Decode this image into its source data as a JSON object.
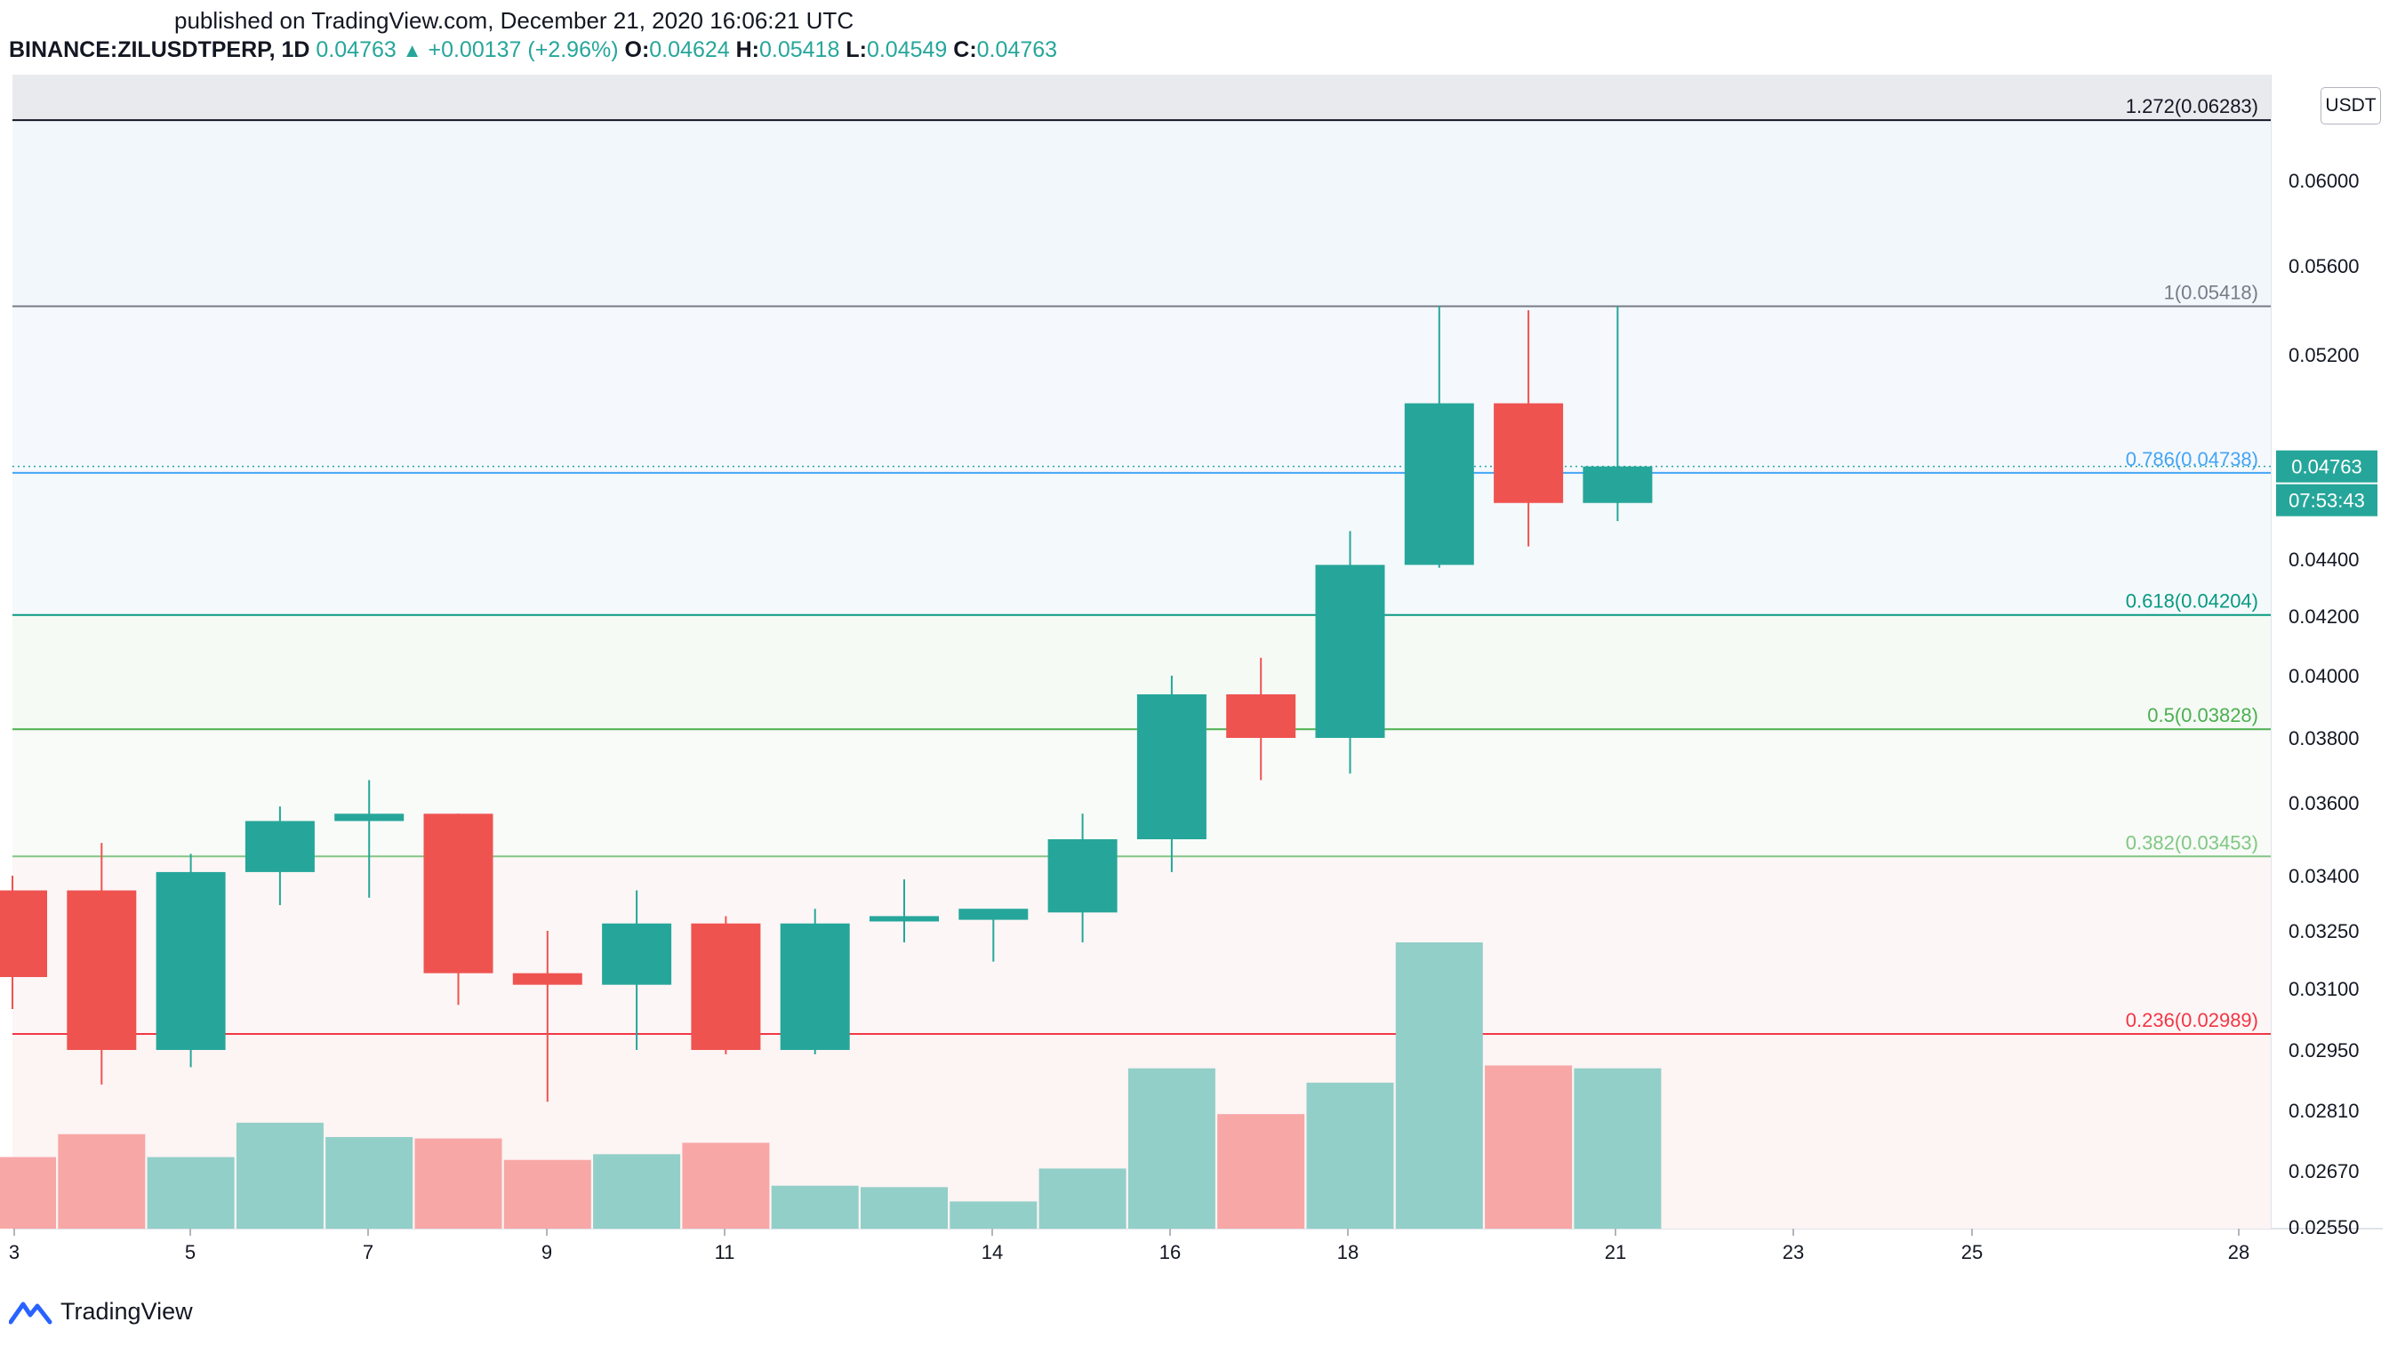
{
  "header": {
    "published": "published on TradingView.com, December 21, 2020 16:06:21 UTC",
    "symbol": "BINANCE:ZILUSDTPERP, 1D",
    "last": "0.04763",
    "change": "+0.00137 (+2.96%)",
    "o_label": "O:",
    "o": "0.04624",
    "h_label": "H:",
    "h": "0.05418",
    "l_label": "L:",
    "l": "0.04549",
    "c_label": "C:",
    "c": "0.04763"
  },
  "brand": {
    "name": "TradingView"
  },
  "axis": {
    "currency": "USDT",
    "price_badge": "0.04763",
    "countdown_badge": "07:53:43"
  },
  "colors": {
    "up": "#26a69a",
    "down": "#ef5350",
    "vol_up": "#92cfc8",
    "vol_down": "#f7a7a6"
  },
  "chart_data": {
    "type": "candlestick",
    "y_ticks": [
      "0.06000",
      "0.05600",
      "0.05200",
      "0.04400",
      "0.04200",
      "0.04000",
      "0.03800",
      "0.03600",
      "0.03400",
      "0.03250",
      "0.03100",
      "0.02950",
      "0.02810",
      "0.02670",
      "0.02550"
    ],
    "x_tick_labels": [
      "3",
      "5",
      "7",
      "9",
      "11",
      "14",
      "16",
      "18",
      "21",
      "23",
      "25",
      "28"
    ],
    "candles": [
      {
        "o": 0.0336,
        "h": 0.034,
        "l": 0.0305,
        "c": 0.0313
      },
      {
        "o": 0.0336,
        "h": 0.0349,
        "l": 0.0287,
        "c": 0.0295
      },
      {
        "o": 0.0295,
        "h": 0.0346,
        "l": 0.0291,
        "c": 0.0341
      },
      {
        "o": 0.0341,
        "h": 0.0359,
        "l": 0.0332,
        "c": 0.0355
      },
      {
        "o": 0.0355,
        "h": 0.0367,
        "l": 0.0334,
        "c": 0.0357
      },
      {
        "o": 0.0357,
        "h": 0.0357,
        "l": 0.0306,
        "c": 0.0314
      },
      {
        "o": 0.0314,
        "h": 0.0325,
        "l": 0.0283,
        "c": 0.0311
      },
      {
        "o": 0.0311,
        "h": 0.0336,
        "l": 0.0295,
        "c": 0.0327
      },
      {
        "o": 0.0327,
        "h": 0.0329,
        "l": 0.0294,
        "c": 0.0295
      },
      {
        "o": 0.0295,
        "h": 0.0331,
        "l": 0.0294,
        "c": 0.0327
      },
      {
        "o": 0.0328,
        "h": 0.0339,
        "l": 0.0322,
        "c": 0.0329
      },
      {
        "o": 0.0328,
        "h": 0.033,
        "l": 0.0317,
        "c": 0.0331
      },
      {
        "o": 0.033,
        "h": 0.0357,
        "l": 0.0322,
        "c": 0.035
      },
      {
        "o": 0.035,
        "h": 0.04,
        "l": 0.0341,
        "c": 0.0394
      },
      {
        "o": 0.0394,
        "h": 0.0406,
        "l": 0.0367,
        "c": 0.038
      },
      {
        "o": 0.038,
        "h": 0.0451,
        "l": 0.0369,
        "c": 0.0438
      },
      {
        "o": 0.0438,
        "h": 0.0542,
        "l": 0.0437,
        "c": 0.0501
      },
      {
        "o": 0.0501,
        "h": 0.054,
        "l": 0.0445,
        "c": 0.0462
      },
      {
        "o": 0.0462,
        "h": 0.05418,
        "l": 0.04549,
        "c": 0.04763
      }
    ],
    "volumes": [
      0.25,
      0.33,
      0.25,
      0.37,
      0.32,
      0.315,
      0.24,
      0.26,
      0.3,
      0.15,
      0.145,
      0.095,
      0.21,
      0.56,
      0.4,
      0.51,
      1.0,
      0.57,
      0.56
    ],
    "fib_levels": [
      {
        "label": "1.272(0.06283)",
        "price": 0.06283,
        "color": "#131722",
        "fill": "#f2f3f5"
      },
      {
        "label": "1(0.05418)",
        "price": 0.05418,
        "color": "#787b86",
        "fill": "#f2f7fc"
      },
      {
        "label": "0.786(0.04738)",
        "price": 0.04738,
        "color": "#42a5f5",
        "fill": "#f5f8fd"
      },
      {
        "label": "0.618(0.04204)",
        "price": 0.04204,
        "color": "#089981",
        "fill": "#f4f9fb"
      },
      {
        "label": "0.5(0.03828)",
        "price": 0.03828,
        "color": "#4caf50",
        "fill": "#f5faf5"
      },
      {
        "label": "0.382(0.03453)",
        "price": 0.03453,
        "color": "#81c784",
        "fill": "#f8fbf7"
      },
      {
        "label": "0.236(0.02989)",
        "price": 0.02989,
        "color": "#f23645",
        "fill": "#fdf6f6"
      }
    ]
  }
}
